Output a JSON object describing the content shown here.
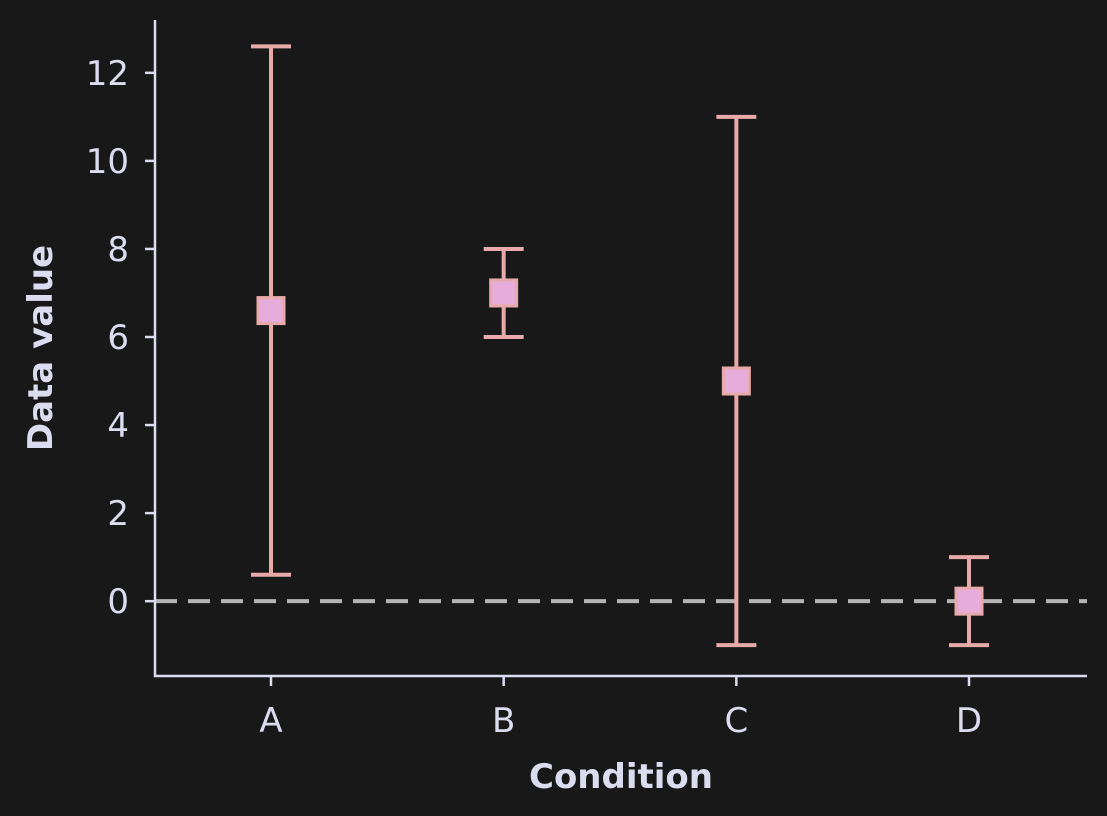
{
  "chart_data": {
    "type": "scatter",
    "xlabel": "Condition",
    "ylabel": "Data value",
    "categories": [
      "A",
      "B",
      "C",
      "D"
    ],
    "values": [
      6.6,
      7.0,
      5.0,
      0.0
    ],
    "error_low": [
      0.6,
      6.0,
      -1.0,
      -1.0
    ],
    "error_high": [
      12.6,
      8.0,
      11.0,
      1.0
    ],
    "ylim": [
      -1.7,
      13.2
    ],
    "yticks": [
      0,
      2,
      4,
      6,
      8,
      10,
      12
    ],
    "reference_line": {
      "y": 0,
      "style": "dashed"
    },
    "grid": false,
    "colors": {
      "background": "#181818",
      "axis": "#dcdcf0",
      "errorbar": "#e8aaa8",
      "marker_fill": "#e6acdc",
      "marker_edge": "#e8aaa8",
      "reference_line": "#b4b4b4"
    }
  }
}
